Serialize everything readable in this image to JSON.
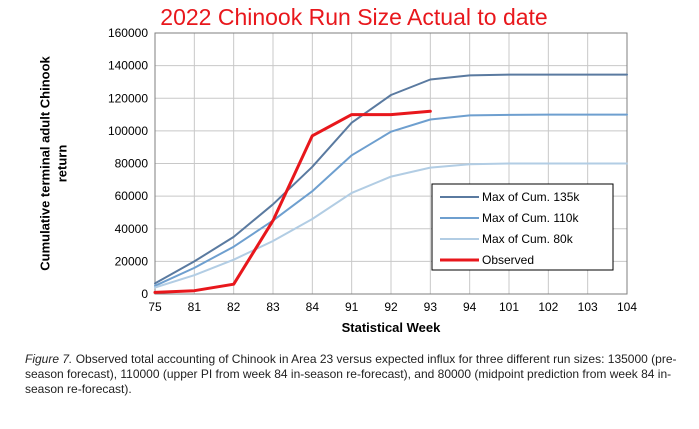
{
  "chart_data": {
    "type": "line",
    "title": "2022 Chinook Run Size Actual to date",
    "xlabel": "Statistical Week",
    "ylabel_lines": [
      "Cumulative terminal adult Chinook",
      "return"
    ],
    "categories": [
      "75",
      "81",
      "82",
      "83",
      "84",
      "91",
      "92",
      "93",
      "94",
      "101",
      "102",
      "103",
      "104"
    ],
    "ylim": [
      0,
      160000
    ],
    "yticks": [
      "0",
      "20000",
      "40000",
      "60000",
      "80000",
      "100000",
      "120000",
      "140000",
      "160000"
    ],
    "grid": true,
    "legend_position": "center-right",
    "series": [
      {
        "name": "Max of Cum. 135k",
        "color": "#5a7aa0",
        "values": [
          6500,
          20000,
          35000,
          55000,
          78000,
          105000,
          122000,
          131500,
          134000,
          134500,
          134500,
          134500,
          134500
        ]
      },
      {
        "name": "Max of Cum. 110k",
        "color": "#6e9fcf",
        "values": [
          5000,
          16000,
          29000,
          45000,
          63000,
          85000,
          99500,
          107000,
          109500,
          109800,
          110000,
          110000,
          110000
        ]
      },
      {
        "name": "Max of Cum. 80k",
        "color": "#b2cde4",
        "values": [
          4000,
          11500,
          21000,
          32500,
          46000,
          62000,
          72000,
          77500,
          79500,
          80000,
          80000,
          80000,
          80000
        ]
      },
      {
        "name": "Observed",
        "color": "#e8171c",
        "values": [
          1000,
          2000,
          6000,
          45000,
          97000,
          110000,
          110000,
          112000,
          null,
          null,
          null,
          null,
          null
        ]
      }
    ]
  },
  "caption": {
    "figure_label": "Figure 7.",
    "text": " Observed total accounting of Chinook in Area 23 versus expected influx for three different run sizes: 135000 (pre-season forecast), 110000 (upper PI from week 84 in-season re-forecast), and 80000 (midpoint prediction from week 84 in-season re-forecast)."
  }
}
